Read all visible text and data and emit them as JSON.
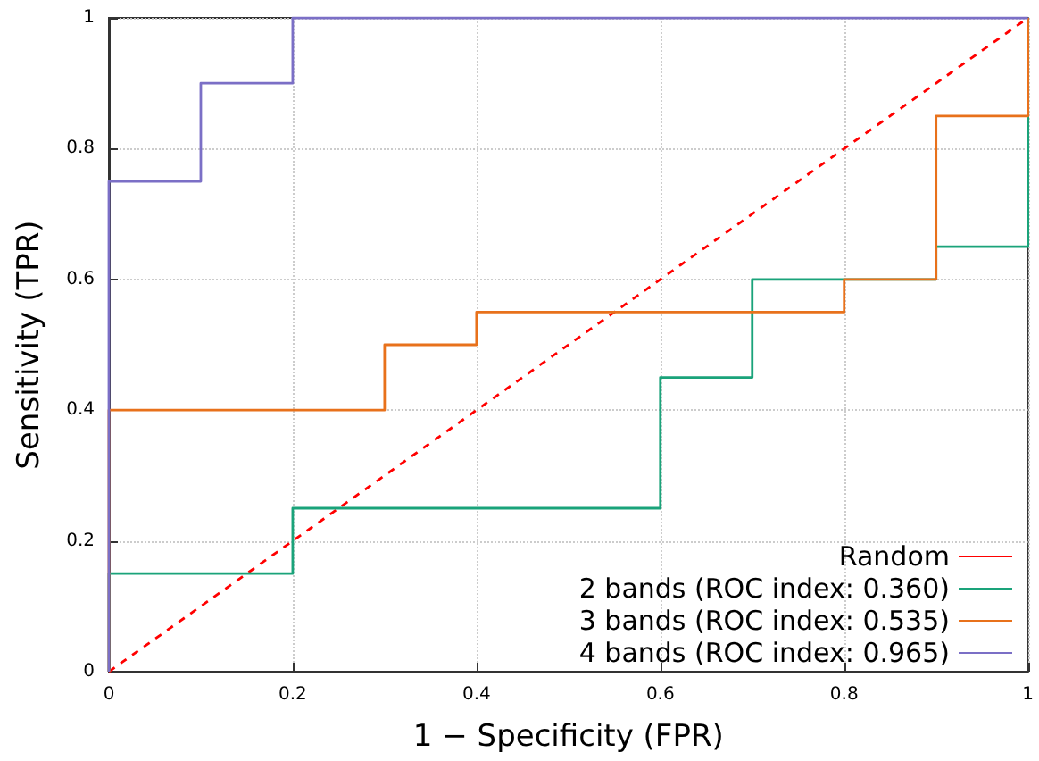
{
  "chart_data": {
    "type": "step",
    "xlabel": "1 − Specificity (FPR)",
    "ylabel": "Sensitivity (TPR)",
    "series": [
      {
        "name": "Random",
        "type": "line",
        "color": "#ff0000",
        "line_style": "dashed",
        "x": [
          0,
          1
        ],
        "values": [
          0,
          1
        ]
      },
      {
        "name": "2 bands (ROC index: 0.360)",
        "color": "#1aa37a",
        "x": [
          0,
          0,
          0.2,
          0.6,
          0.7,
          0.9,
          1
        ],
        "values": [
          0,
          0.15,
          0.25,
          0.45,
          0.6,
          0.65,
          1
        ]
      },
      {
        "name": "3 bands (ROC index: 0.535)",
        "color": "#e8711b",
        "x": [
          0,
          0,
          0.3,
          0.4,
          0.8,
          0.9,
          1
        ],
        "values": [
          0,
          0.4,
          0.5,
          0.55,
          0.6,
          0.85,
          1
        ]
      },
      {
        "name": "4 bands (ROC index: 0.965)",
        "color": "#7b6fc6",
        "x": [
          0,
          0,
          0.1,
          0.2,
          1
        ],
        "values": [
          0,
          0.75,
          0.9,
          1,
          1
        ]
      }
    ],
    "xlim": [
      0,
      1
    ],
    "ylim": [
      0,
      1
    ],
    "xticks": [
      0,
      0.2,
      0.4,
      0.6,
      0.8,
      1
    ],
    "yticks": [
      0,
      0.2,
      0.4,
      0.6,
      0.8,
      1
    ],
    "grid": true,
    "legend": "bottom right",
    "marker": "none",
    "line_style": "solid"
  }
}
